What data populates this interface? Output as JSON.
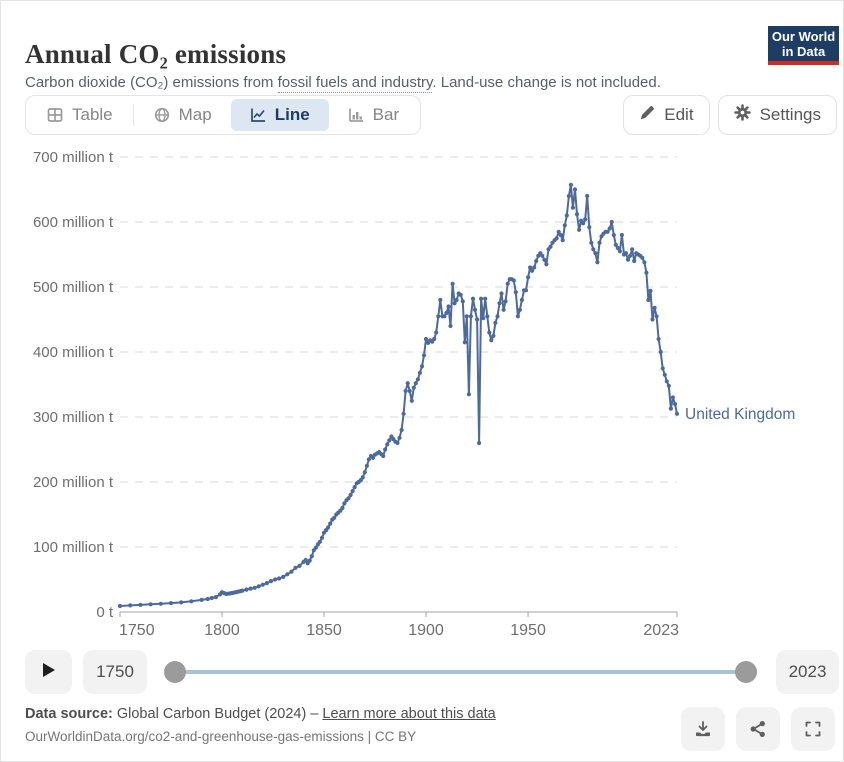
{
  "header": {
    "title": "Annual CO₂ emissions",
    "subtitle_prefix": "Carbon dioxide (CO₂) emissions from ",
    "subtitle_term": "fossil fuels and industry",
    "subtitle_suffix": ". Land-use change is not included.",
    "logo_line1": "Our World",
    "logo_line2": "in Data",
    "logo_bg": "#1d3d63",
    "logo_accent": "#d42b21"
  },
  "tabs": {
    "items": [
      {
        "label": "Table",
        "icon": "table-icon",
        "active": false
      },
      {
        "label": "Map",
        "icon": "globe-icon",
        "active": false
      },
      {
        "label": "Line",
        "icon": "line-chart-icon",
        "active": true
      },
      {
        "label": "Bar",
        "icon": "bar-chart-icon",
        "active": false
      }
    ],
    "active_bg": "#dce7f2",
    "active_color": "#1d3d63"
  },
  "header_buttons": [
    {
      "label": "Edit",
      "icon": "pencil-icon"
    },
    {
      "label": "Settings",
      "icon": "gear-icon"
    }
  ],
  "timeline": {
    "play_icon": "play-icon",
    "start_label": "1750",
    "end_label": "2023",
    "track_color": "#a9c1da",
    "handle_color": "#9b9b9b"
  },
  "footer": {
    "source_label": "Data source:",
    "source_text": " Global Carbon Budget (2024) – ",
    "source_link": "Learn more about this data",
    "citation": "OurWorldinData.org/co2-and-greenhouse-gas-emissions | CC BY",
    "action_icons": [
      "download-icon",
      "share-icon",
      "fullscreen-icon"
    ]
  },
  "chart_data": {
    "type": "line",
    "title": "Annual CO₂ emissions",
    "unit": "million t",
    "x_domain": [
      1750,
      2023
    ],
    "y_domain": [
      0,
      700
    ],
    "grid": "dashed-horizontal",
    "legend_position": "end-of-line-label",
    "x_ticks": [
      {
        "v": 1750,
        "label": "1750"
      },
      {
        "v": 1800,
        "label": "1800"
      },
      {
        "v": 1850,
        "label": "1850"
      },
      {
        "v": 1900,
        "label": "1900"
      },
      {
        "v": 1950,
        "label": "1950"
      },
      {
        "v": 2023,
        "label": "2023"
      }
    ],
    "y_ticks": [
      {
        "v": 0,
        "label": "0 t"
      },
      {
        "v": 100,
        "label": "100 million t"
      },
      {
        "v": 200,
        "label": "200 million t"
      },
      {
        "v": 300,
        "label": "300 million t"
      },
      {
        "v": 400,
        "label": "400 million t"
      },
      {
        "v": 500,
        "label": "500 million t"
      },
      {
        "v": 600,
        "label": "600 million t"
      },
      {
        "v": 700,
        "label": "700 million t"
      }
    ],
    "series": [
      {
        "name": "United Kingdom",
        "color": "#4C6A9C",
        "points": [
          [
            1750,
            9.3
          ],
          [
            1755,
            10.2
          ],
          [
            1760,
            11
          ],
          [
            1765,
            11.8
          ],
          [
            1770,
            12.6
          ],
          [
            1775,
            13.7
          ],
          [
            1780,
            14.8
          ],
          [
            1785,
            16.4
          ],
          [
            1790,
            18.6
          ],
          [
            1793,
            20
          ],
          [
            1795,
            21.5
          ],
          [
            1797,
            23
          ],
          [
            1799,
            27
          ],
          [
            1800,
            30.5
          ],
          [
            1801,
            29
          ],
          [
            1802,
            27.8
          ],
          [
            1803,
            28.2
          ],
          [
            1804,
            28.6
          ],
          [
            1805,
            29.3
          ],
          [
            1806,
            30
          ],
          [
            1807,
            30.6
          ],
          [
            1808,
            31.4
          ],
          [
            1809,
            32.2
          ],
          [
            1810,
            33
          ],
          [
            1812,
            34.5
          ],
          [
            1814,
            36
          ],
          [
            1816,
            37.2
          ],
          [
            1818,
            39.5
          ],
          [
            1820,
            42
          ],
          [
            1822,
            44.5
          ],
          [
            1824,
            47.5
          ],
          [
            1826,
            50
          ],
          [
            1828,
            51.5
          ],
          [
            1830,
            54
          ],
          [
            1832,
            58
          ],
          [
            1834,
            62
          ],
          [
            1836,
            68
          ],
          [
            1838,
            71
          ],
          [
            1840,
            77
          ],
          [
            1841,
            80
          ],
          [
            1842,
            75
          ],
          [
            1843,
            79
          ],
          [
            1844,
            86
          ],
          [
            1845,
            95
          ],
          [
            1846,
            99
          ],
          [
            1847,
            104
          ],
          [
            1848,
            108
          ],
          [
            1849,
            114
          ],
          [
            1850,
            122
          ],
          [
            1851,
            126
          ],
          [
            1852,
            130
          ],
          [
            1853,
            136
          ],
          [
            1854,
            142
          ],
          [
            1855,
            145
          ],
          [
            1856,
            150
          ],
          [
            1857,
            153
          ],
          [
            1858,
            156
          ],
          [
            1859,
            160
          ],
          [
            1860,
            167
          ],
          [
            1861,
            172
          ],
          [
            1862,
            175
          ],
          [
            1863,
            180
          ],
          [
            1864,
            186
          ],
          [
            1865,
            192
          ],
          [
            1866,
            198
          ],
          [
            1867,
            200
          ],
          [
            1868,
            203
          ],
          [
            1869,
            207
          ],
          [
            1870,
            215
          ],
          [
            1871,
            225
          ],
          [
            1872,
            235
          ],
          [
            1873,
            240
          ],
          [
            1874,
            237
          ],
          [
            1875,
            242
          ],
          [
            1876,
            244
          ],
          [
            1877,
            246
          ],
          [
            1878,
            243
          ],
          [
            1879,
            240
          ],
          [
            1880,
            250
          ],
          [
            1881,
            258
          ],
          [
            1882,
            264
          ],
          [
            1883,
            270
          ],
          [
            1884,
            266
          ],
          [
            1885,
            262
          ],
          [
            1886,
            260
          ],
          [
            1887,
            268
          ],
          [
            1888,
            280
          ],
          [
            1889,
            305
          ],
          [
            1890,
            340
          ],
          [
            1891,
            352
          ],
          [
            1892,
            340
          ],
          [
            1893,
            325
          ],
          [
            1894,
            345
          ],
          [
            1895,
            352
          ],
          [
            1896,
            358
          ],
          [
            1897,
            368
          ],
          [
            1898,
            378
          ],
          [
            1899,
            395
          ],
          [
            1900,
            420
          ],
          [
            1901,
            414
          ],
          [
            1902,
            418
          ],
          [
            1903,
            416
          ],
          [
            1904,
            420
          ],
          [
            1905,
            430
          ],
          [
            1906,
            455
          ],
          [
            1907,
            480
          ],
          [
            1908,
            455
          ],
          [
            1909,
            455
          ],
          [
            1910,
            460
          ],
          [
            1911,
            470
          ],
          [
            1912,
            440
          ],
          [
            1913,
            505
          ],
          [
            1914,
            475
          ],
          [
            1915,
            480
          ],
          [
            1916,
            490
          ],
          [
            1917,
            488
          ],
          [
            1918,
            478
          ],
          [
            1919,
            415
          ],
          [
            1920,
            455
          ],
          [
            1921,
            335
          ],
          [
            1922,
            455
          ],
          [
            1923,
            482
          ],
          [
            1924,
            465
          ],
          [
            1925,
            450
          ],
          [
            1926,
            260
          ],
          [
            1927,
            482
          ],
          [
            1928,
            452
          ],
          [
            1929,
            482
          ],
          [
            1930,
            455
          ],
          [
            1931,
            430
          ],
          [
            1932,
            418
          ],
          [
            1933,
            425
          ],
          [
            1934,
            445
          ],
          [
            1935,
            455
          ],
          [
            1936,
            475
          ],
          [
            1937,
            490
          ],
          [
            1938,
            465
          ],
          [
            1939,
            478
          ],
          [
            1940,
            505
          ],
          [
            1941,
            512
          ],
          [
            1942,
            512
          ],
          [
            1943,
            510
          ],
          [
            1944,
            492
          ],
          [
            1945,
            455
          ],
          [
            1946,
            465
          ],
          [
            1947,
            480
          ],
          [
            1948,
            495
          ],
          [
            1949,
            495
          ],
          [
            1950,
            515
          ],
          [
            1951,
            530
          ],
          [
            1952,
            525
          ],
          [
            1953,
            530
          ],
          [
            1954,
            540
          ],
          [
            1955,
            548
          ],
          [
            1956,
            552
          ],
          [
            1957,
            548
          ],
          [
            1958,
            542
          ],
          [
            1959,
            535
          ],
          [
            1960,
            558
          ],
          [
            1961,
            562
          ],
          [
            1962,
            568
          ],
          [
            1963,
            572
          ],
          [
            1964,
            575
          ],
          [
            1965,
            585
          ],
          [
            1966,
            580
          ],
          [
            1967,
            572
          ],
          [
            1968,
            595
          ],
          [
            1969,
            610
          ],
          [
            1970,
            640
          ],
          [
            1971,
            657
          ],
          [
            1972,
            622
          ],
          [
            1973,
            650
          ],
          [
            1974,
            612
          ],
          [
            1975,
            588
          ],
          [
            1976,
            602
          ],
          [
            1977,
            598
          ],
          [
            1978,
            604
          ],
          [
            1979,
            640
          ],
          [
            1980,
            592
          ],
          [
            1981,
            568
          ],
          [
            1982,
            558
          ],
          [
            1983,
            552
          ],
          [
            1984,
            538
          ],
          [
            1985,
            568
          ],
          [
            1986,
            578
          ],
          [
            1987,
            582
          ],
          [
            1988,
            585
          ],
          [
            1989,
            585
          ],
          [
            1990,
            590
          ],
          [
            1991,
            600
          ],
          [
            1992,
            580
          ],
          [
            1993,
            565
          ],
          [
            1994,
            560
          ],
          [
            1995,
            555
          ],
          [
            1996,
            580
          ],
          [
            1997,
            550
          ],
          [
            1998,
            552
          ],
          [
            1999,
            542
          ],
          [
            2000,
            548
          ],
          [
            2001,
            558
          ],
          [
            2002,
            540
          ],
          [
            2003,
            552
          ],
          [
            2004,
            550
          ],
          [
            2005,
            548
          ],
          [
            2006,
            545
          ],
          [
            2007,
            538
          ],
          [
            2008,
            522
          ],
          [
            2009,
            480
          ],
          [
            2010,
            494
          ],
          [
            2011,
            450
          ],
          [
            2012,
            468
          ],
          [
            2013,
            455
          ],
          [
            2014,
            420
          ],
          [
            2015,
            400
          ],
          [
            2016,
            375
          ],
          [
            2017,
            365
          ],
          [
            2018,
            355
          ],
          [
            2019,
            348
          ],
          [
            2020,
            313
          ],
          [
            2021,
            330
          ],
          [
            2022,
            320
          ],
          [
            2023,
            305
          ]
        ]
      }
    ],
    "colors": {
      "gridline": "#d8d8d8",
      "axis": "#a3a3a3",
      "tick_text": "#6e6e6e"
    }
  }
}
